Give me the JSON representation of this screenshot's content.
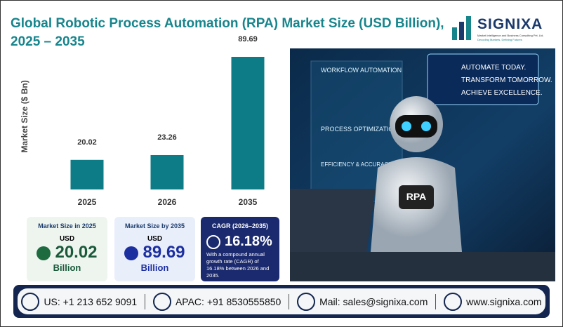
{
  "header": {
    "title": "Global Robotic Process Automation (RPA) Market Size (USD Billion), 2025 – 2035"
  },
  "logo": {
    "name": "SIGNIXA",
    "tagline": "Market Intelligence and Business Consulting Pvt. Ltd.",
    "motto": "Decoding Markets, Defining Futures"
  },
  "chart_data": {
    "type": "bar",
    "y_label": "Market Size ($ Bn)",
    "categories": [
      "2025",
      "2026",
      "2035"
    ],
    "values": [
      20.02,
      23.26,
      89.69
    ],
    "color": "#0e7c86"
  },
  "cards": [
    {
      "label": "Market Size in 2025",
      "unit": "USD",
      "value": "20.02",
      "scale": "Billion"
    },
    {
      "label": "Market Size by 2035",
      "unit": "USD",
      "value": "89.69",
      "scale": "Billion"
    },
    {
      "label": "CAGR (2026–2035)",
      "value": "16.18%",
      "note": "With a compound annual growth rate (CAGR) of 16.18% between 2026 and 2035."
    }
  ],
  "image": {
    "panel_1": "WORKFLOW AUTOMATION",
    "panel_2": "PROCESS OPTIMIZATION",
    "panel_3": "EFFICIENCY & ACCURACY",
    "slogan_1": "AUTOMATE TODAY.",
    "slogan_2": "TRANSFORM TOMORROW.",
    "slogan_3": "ACHIEVE EXCELLENCE.",
    "badge": "RPA"
  },
  "footer": {
    "contacts": [
      "US: +1 213 652 9091",
      "APAC: +91 8530555850",
      "Mail: sales@signixa.com",
      "www.signixa.com"
    ]
  }
}
